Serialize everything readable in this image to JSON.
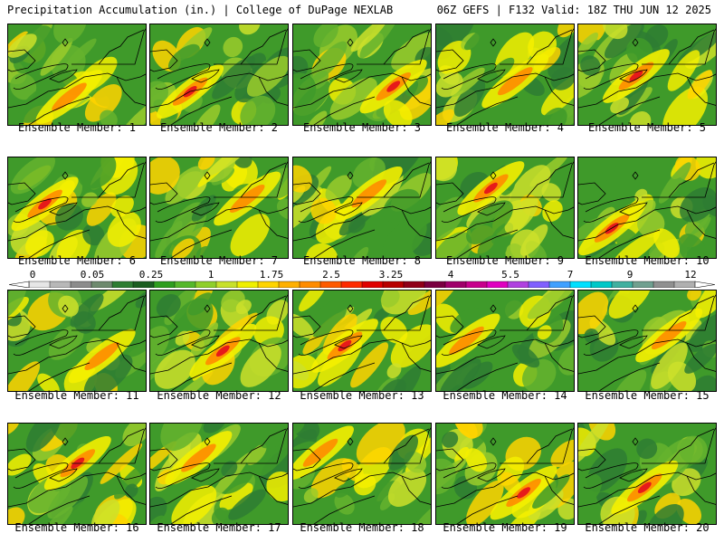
{
  "header": {
    "left": "Precipitation Accumulation (in.) | College of DuPage NEXLAB",
    "right": "06Z GEFS | F132 Valid: 18Z THU JUN 12 2025"
  },
  "panels": [
    {
      "label": "Ensemble Member: 1"
    },
    {
      "label": "Ensemble Member: 2"
    },
    {
      "label": "Ensemble Member: 3"
    },
    {
      "label": "Ensemble Member: 4"
    },
    {
      "label": "Ensemble Member: 5"
    },
    {
      "label": "Ensemble Member: 6"
    },
    {
      "label": "Ensemble Member: 7"
    },
    {
      "label": "Ensemble Member: 8"
    },
    {
      "label": "Ensemble Member: 9"
    },
    {
      "label": "Ensemble Member: 10"
    },
    {
      "label": "Ensemble Member: 11"
    },
    {
      "label": "Ensemble Member: 12"
    },
    {
      "label": "Ensemble Member: 13"
    },
    {
      "label": "Ensemble Member: 14"
    },
    {
      "label": "Ensemble Member: 15"
    },
    {
      "label": "Ensemble Member: 16"
    },
    {
      "label": "Ensemble Member: 17"
    },
    {
      "label": "Ensemble Member: 18"
    },
    {
      "label": "Ensemble Member: 19"
    },
    {
      "label": "Ensemble Member: 20"
    }
  ],
  "colorbar": {
    "labels": [
      "0",
      "0.05",
      "0.25",
      "1",
      "1.75",
      "2.5",
      "3.25",
      "4",
      "5.5",
      "7",
      "9",
      "12"
    ],
    "colors": [
      "#e6e6e6",
      "#b8b8b8",
      "#8c8c8c",
      "#6e8a6e",
      "#2e7d32",
      "#1b5e20",
      "#2e9e1e",
      "#55b82a",
      "#8fcf2a",
      "#c8e12a",
      "#f0f000",
      "#ffd400",
      "#ffb000",
      "#ff8c00",
      "#ff5a00",
      "#ff2a00",
      "#e00000",
      "#b80000",
      "#900018",
      "#7a0040",
      "#a0006a",
      "#c8008c",
      "#e000c0",
      "#b040e0",
      "#8060ff",
      "#40a0ff",
      "#00e0ff",
      "#00c8c8",
      "#40b0a0",
      "#70a090",
      "#909090",
      "#b0b0b0"
    ]
  }
}
